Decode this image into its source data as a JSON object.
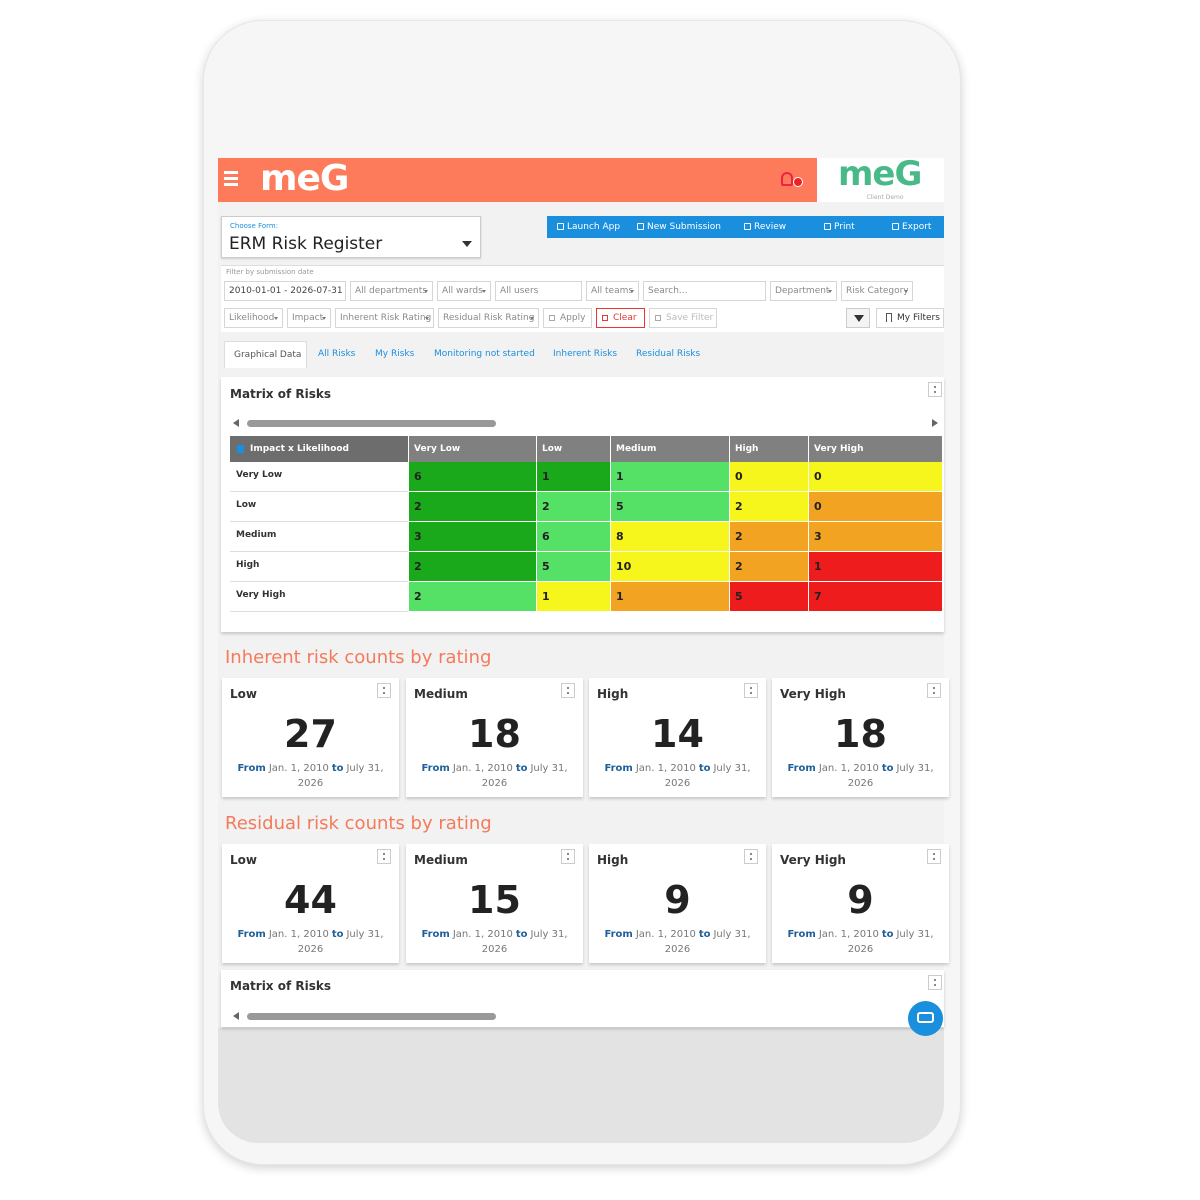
{
  "header": {
    "logo": "meG",
    "brand_logo": "meG",
    "brand_subtitle": "Client Demo"
  },
  "form": {
    "label": "Choose Form:",
    "value": "ERM Risk Register"
  },
  "toolbar": [
    "Launch App",
    "New Submission",
    "Review",
    "Print",
    "Export"
  ],
  "filters": {
    "date_label": "Filter by submission date",
    "date_range": "2010-01-01 - 2026-07-31",
    "row1": [
      "All departments",
      "All wards",
      "All users",
      "All teams",
      "Search...",
      "Department",
      "Risk Category"
    ],
    "row2": [
      "Likelihood",
      "Impact",
      "Inherent Risk Rating",
      "Residual Risk Rating",
      "Apply",
      "Clear",
      "Save Filter"
    ],
    "my_filters": "My Filters"
  },
  "tabs": [
    "Graphical Data",
    "All Risks",
    "My Risks",
    "Monitoring not started",
    "Inherent Risks",
    "Residual Risks"
  ],
  "matrix": {
    "title": "Matrix of Risks",
    "corner": "Impact x Likelihood",
    "columns": [
      "Very Low",
      "Low",
      "Medium",
      "High",
      "Very High"
    ],
    "rows": [
      {
        "label": "Very Low",
        "values": [
          6,
          1,
          1,
          0,
          0
        ],
        "colors": [
          "#1aa91a",
          "#1aa91a",
          "#55e066",
          "#f6f61c",
          "#f6f61c"
        ]
      },
      {
        "label": "Low",
        "values": [
          2,
          2,
          5,
          2,
          0
        ],
        "colors": [
          "#1aa91a",
          "#55e066",
          "#55e066",
          "#f6f61c",
          "#f2a322"
        ]
      },
      {
        "label": "Medium",
        "values": [
          3,
          6,
          8,
          2,
          3
        ],
        "colors": [
          "#1aa91a",
          "#55e066",
          "#f6f61c",
          "#f2a322",
          "#f2a322"
        ]
      },
      {
        "label": "High",
        "values": [
          2,
          5,
          10,
          2,
          1
        ],
        "colors": [
          "#1aa91a",
          "#55e066",
          "#f6f61c",
          "#f2a322",
          "#ee1c1c"
        ]
      },
      {
        "label": "Very High",
        "values": [
          2,
          1,
          1,
          5,
          7
        ],
        "colors": [
          "#55e066",
          "#f6f61c",
          "#f2a322",
          "#ee1c1c",
          "#ee1c1c"
        ]
      }
    ]
  },
  "inherent": {
    "title": "Inherent risk counts by rating",
    "cards": [
      {
        "label": "Low",
        "count": 27,
        "from": "From",
        "start": "Jan. 1, 2010",
        "to": "to",
        "end": "July 31, 2026"
      },
      {
        "label": "Medium",
        "count": 18,
        "from": "From",
        "start": "Jan. 1, 2010",
        "to": "to",
        "end": "July 31, 2026"
      },
      {
        "label": "High",
        "count": 14,
        "from": "From",
        "start": "Jan. 1, 2010",
        "to": "to",
        "end": "July 31, 2026"
      },
      {
        "label": "Very High",
        "count": 18,
        "from": "From",
        "start": "Jan. 1, 2010",
        "to": "to",
        "end": "July 31, 2026"
      }
    ]
  },
  "residual": {
    "title": "Residual risk counts by rating",
    "cards": [
      {
        "label": "Low",
        "count": 44,
        "from": "From",
        "start": "Jan. 1, 2010",
        "to": "to",
        "end": "July 31, 2026"
      },
      {
        "label": "Medium",
        "count": 15,
        "from": "From",
        "start": "Jan. 1, 2010",
        "to": "to",
        "end": "July 31, 2026"
      },
      {
        "label": "High",
        "count": 9,
        "from": "From",
        "start": "Jan. 1, 2010",
        "to": "to",
        "end": "July 31, 2026"
      },
      {
        "label": "Very High",
        "count": 9,
        "from": "From",
        "start": "Jan. 1, 2010",
        "to": "to",
        "end": "July 31, 2026"
      }
    ]
  },
  "matrix2": {
    "title": "Matrix of Risks"
  }
}
